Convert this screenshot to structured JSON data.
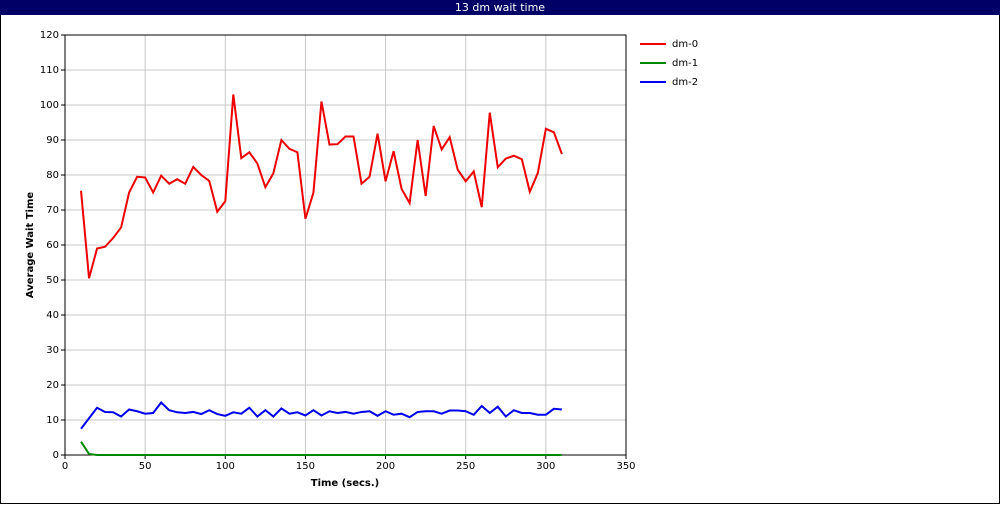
{
  "chart_data": {
    "type": "line",
    "title": "13 dm wait time",
    "x_label": "Time (secs.)",
    "y_label": "Average Wait Time",
    "x": [
      10,
      15,
      20,
      25,
      30,
      35,
      40,
      45,
      50,
      55,
      60,
      65,
      70,
      75,
      80,
      85,
      90,
      95,
      100,
      105,
      110,
      115,
      120,
      125,
      130,
      135,
      140,
      145,
      150,
      155,
      160,
      165,
      170,
      175,
      180,
      185,
      190,
      195,
      200,
      205,
      210,
      215,
      220,
      225,
      230,
      235,
      240,
      245,
      250,
      255,
      260,
      265,
      270,
      275,
      280,
      285,
      290,
      295,
      300,
      305,
      310
    ],
    "series": [
      {
        "name": "dm-0",
        "color": "#ee0000",
        "values": [
          75.5,
          50.5,
          59,
          59.5,
          62,
          65,
          75,
          79.5,
          79.3,
          75,
          79.8,
          77.5,
          78.8,
          77.5,
          82.3,
          80,
          78.3,
          69.5,
          72.5,
          103,
          84.8,
          86.5,
          83.3,
          76.5,
          80.5,
          90,
          87.5,
          86.5,
          67.5,
          75,
          101,
          88.7,
          88.8,
          91,
          91,
          77.5,
          79.5,
          91.8,
          78.2,
          86.8,
          76,
          72,
          90,
          74,
          94,
          87.3,
          90.8,
          81.5,
          78.2,
          81,
          70.8,
          97.8,
          82.2,
          84.7,
          85.5,
          84.5,
          75.2,
          80.6,
          93.2,
          92.2,
          86
        ]
      },
      {
        "name": "dm-1",
        "color": "#008800",
        "values": [
          3.8,
          0.3,
          0,
          0,
          0,
          0,
          0,
          0,
          0,
          0,
          0,
          0,
          0,
          0,
          0,
          0,
          0,
          0,
          0,
          0,
          0,
          0,
          0,
          0,
          0,
          0,
          0,
          0,
          0,
          0,
          0,
          0,
          0,
          0,
          0,
          0,
          0,
          0,
          0,
          0,
          0,
          0,
          0,
          0,
          0,
          0,
          0,
          0,
          0,
          0,
          0,
          0,
          0,
          0,
          0,
          0,
          0,
          0,
          0,
          0,
          0
        ]
      },
      {
        "name": "dm-2",
        "color": "#0000ee",
        "values": [
          7.5,
          10.5,
          13.5,
          12.3,
          12.2,
          11,
          13,
          12.5,
          11.8,
          12,
          15,
          12.8,
          12.2,
          12,
          12.3,
          11.7,
          12.8,
          11.7,
          11.2,
          12.2,
          11.8,
          13.5,
          11,
          12.8,
          11,
          13.3,
          11.8,
          12.2,
          11.3,
          12.8,
          11.3,
          12.5,
          12,
          12.3,
          11.8,
          12.3,
          12.5,
          11.2,
          12.5,
          11.5,
          11.8,
          10.8,
          12.3,
          12.5,
          12.5,
          11.8,
          12.7,
          12.7,
          12.5,
          11.5,
          14,
          12,
          13.8,
          11,
          12.8,
          12,
          12,
          11.5,
          11.5,
          13.2,
          13
        ]
      }
    ],
    "xlim": [
      0,
      350
    ],
    "xticks": [
      0,
      50,
      100,
      150,
      200,
      250,
      300,
      350
    ],
    "ylim": [
      0,
      120
    ],
    "yticks": [
      0,
      10,
      20,
      30,
      40,
      50,
      60,
      70,
      80,
      90,
      100,
      110,
      120
    ],
    "grid": true,
    "legend": "right"
  }
}
